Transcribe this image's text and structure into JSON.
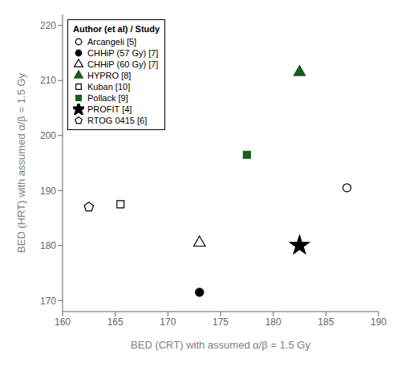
{
  "chart_data": {
    "type": "scatter",
    "title": "",
    "xlabel": "BED (CRT) with assumed α/β = 1.5 Gy",
    "ylabel": "BED (HRT) with assumed α/β = 1.5 Gy",
    "xlim": [
      160,
      190
    ],
    "ylim": [
      168,
      222
    ],
    "xticks": [
      160,
      165,
      170,
      175,
      180,
      185,
      190
    ],
    "yticks": [
      170,
      180,
      190,
      200,
      210,
      220
    ],
    "grid": false,
    "legend": "upper left",
    "legend_title": "Author (et al) / Study",
    "series": [
      {
        "name": "Arcangeli [5]",
        "color": "black",
        "marker": "circle-open",
        "x": [
          187.0
        ],
        "values": [
          190.5
        ]
      },
      {
        "name": "CHHiP (57 Gy) [7]",
        "color": "black",
        "marker": "circle",
        "x": [
          173.0
        ],
        "values": [
          171.5
        ]
      },
      {
        "name": "CHHiP (60 Gy) [7]",
        "color": "black",
        "marker": "triangle-open",
        "x": [
          173.0
        ],
        "values": [
          180.5
        ]
      },
      {
        "name": "HYPRO [8]",
        "color": "#1a5c1a",
        "marker": "triangle",
        "x": [
          182.5
        ],
        "values": [
          211.5
        ]
      },
      {
        "name": "Kuban [10]",
        "color": "black",
        "marker": "square-open",
        "x": [
          165.5
        ],
        "values": [
          187.5
        ]
      },
      {
        "name": "Pollack [9]",
        "color": "#1a5c1a",
        "marker": "square",
        "x": [
          177.5
        ],
        "values": [
          196.5
        ]
      },
      {
        "name": "PROFIT [4]",
        "color": "black",
        "marker": "star",
        "x": [
          182.5
        ],
        "values": [
          180.0
        ]
      },
      {
        "name": "RTOG 0415 [6]",
        "color": "black",
        "marker": "pentagon-open",
        "x": [
          162.5
        ],
        "values": [
          187.0
        ]
      }
    ]
  }
}
